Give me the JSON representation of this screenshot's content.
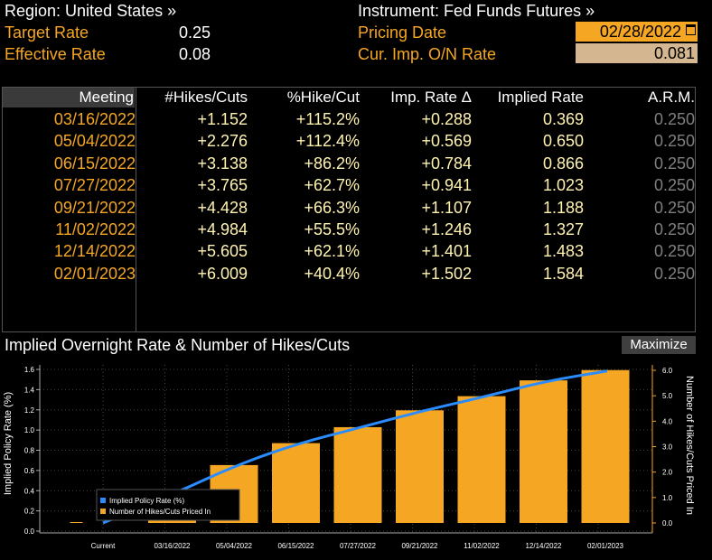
{
  "header": {
    "region": "Region: United States »",
    "instrument": "Instrument: Fed Funds Futures »",
    "target_rate_label": "Target Rate",
    "target_rate_value": "0.25",
    "effective_rate_label": "Effective Rate",
    "effective_rate_value": "0.08",
    "pricing_date_label": "Pricing Date",
    "pricing_date_value": "02/28/2022",
    "on_rate_label": "Cur. Imp. O/N Rate",
    "on_rate_value": "0.081"
  },
  "table": {
    "headers": [
      "Meeting",
      "#Hikes/Cuts",
      "%Hike/Cut",
      "Imp. Rate Δ",
      "Implied Rate",
      "A.R.M."
    ],
    "rows": [
      [
        "03/16/2022",
        "+1.152",
        "+115.2%",
        "+0.288",
        "0.369",
        "0.250"
      ],
      [
        "05/04/2022",
        "+2.276",
        "+112.4%",
        "+0.569",
        "0.650",
        "0.250"
      ],
      [
        "06/15/2022",
        "+3.138",
        "+86.2%",
        "+0.784",
        "0.866",
        "0.250"
      ],
      [
        "07/27/2022",
        "+3.765",
        "+62.7%",
        "+0.941",
        "1.023",
        "0.250"
      ],
      [
        "09/21/2022",
        "+4.428",
        "+66.3%",
        "+1.107",
        "1.188",
        "0.250"
      ],
      [
        "11/02/2022",
        "+4.984",
        "+55.5%",
        "+1.246",
        "1.327",
        "0.250"
      ],
      [
        "12/14/2022",
        "+5.605",
        "+62.1%",
        "+1.401",
        "1.483",
        "0.250"
      ],
      [
        "02/01/2023",
        "+6.009",
        "+40.4%",
        "+1.502",
        "1.584",
        "0.250"
      ]
    ]
  },
  "chart_section": {
    "title": "Implied Overnight Rate & Number of Hikes/Cuts",
    "maximize_label": "Maximize"
  },
  "chart_data": {
    "type": "bar",
    "categories": [
      "Current",
      "03/16/2022",
      "05/04/2022",
      "06/15/2022",
      "07/27/2022",
      "09/21/2022",
      "11/02/2022",
      "12/14/2022",
      "02/01/2023"
    ],
    "series": [
      {
        "name": "Implied Policy Rate (%)",
        "type": "line",
        "axis": "left",
        "values": [
          0.081,
          0.369,
          0.65,
          0.866,
          1.023,
          1.188,
          1.327,
          1.483,
          1.584
        ]
      },
      {
        "name": "Number of Hikes/Cuts Priced In",
        "type": "bar",
        "axis": "right",
        "values": [
          0,
          1.152,
          2.276,
          3.138,
          3.765,
          4.428,
          4.984,
          5.605,
          6.009
        ]
      }
    ],
    "ylabel": "Implied Policy Rate (%)",
    "y2label": "Number of Hikes/Cuts Priced In",
    "ylim": [
      -0.08,
      1.72
    ],
    "y2lim": [
      -0.3,
      6.3
    ],
    "yticks": [
      "0.0",
      "0.2",
      "0.4",
      "0.6",
      "0.8",
      "1.0",
      "1.2",
      "1.4",
      "1.6"
    ],
    "y2ticks": [
      "0.0",
      "1.0",
      "2.0",
      "3.0",
      "4.0",
      "5.0",
      "6.0"
    ],
    "grid": true,
    "legend_position": "bottom-left",
    "colors": {
      "line": "#2a8cff",
      "bar": "#f5a623"
    }
  }
}
